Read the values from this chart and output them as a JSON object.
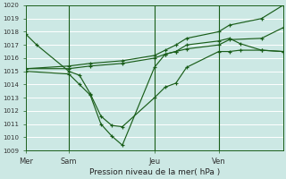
{
  "bg_color": "#cce8e4",
  "grid_color": "#b0d8d0",
  "line_color": "#1a5e1a",
  "ylabel": "Pression niveau de la mer( hPa )",
  "ylim": [
    1009,
    1020
  ],
  "yticks": [
    1009,
    1010,
    1011,
    1012,
    1013,
    1014,
    1015,
    1016,
    1017,
    1018,
    1019,
    1020
  ],
  "xlim": [
    0,
    48
  ],
  "xtick_positions": [
    0,
    8,
    24,
    36
  ],
  "xtick_labels": [
    "Mer",
    "Sam",
    "Jeu",
    "Ven"
  ],
  "vline_positions": [
    8,
    24,
    36
  ],
  "series": [
    {
      "x": [
        0,
        2,
        8,
        10,
        12,
        14,
        16,
        18,
        24,
        26,
        28,
        30,
        36,
        38,
        40,
        44,
        48
      ],
      "y": [
        1017.8,
        1017.0,
        1015.0,
        1014.7,
        1013.3,
        1011.6,
        1010.9,
        1010.8,
        1013.0,
        1013.8,
        1014.1,
        1015.3,
        1016.5,
        1016.5,
        1016.6,
        1016.6,
        1016.5
      ]
    },
    {
      "x": [
        0,
        8,
        10,
        12,
        14,
        16,
        18,
        24,
        26,
        28,
        30,
        36,
        38,
        40,
        44,
        48
      ],
      "y": [
        1015.0,
        1014.8,
        1014.0,
        1013.2,
        1011.0,
        1010.1,
        1009.4,
        1015.3,
        1016.3,
        1016.5,
        1017.0,
        1017.3,
        1017.5,
        1017.1,
        1016.6,
        1016.5
      ]
    },
    {
      "x": [
        0,
        8,
        12,
        18,
        24,
        26,
        28,
        30,
        36,
        38,
        44,
        48
      ],
      "y": [
        1015.2,
        1015.2,
        1015.4,
        1015.6,
        1016.0,
        1016.3,
        1016.5,
        1016.7,
        1017.0,
        1017.4,
        1017.5,
        1018.3
      ]
    },
    {
      "x": [
        0,
        8,
        12,
        18,
        24,
        26,
        28,
        30,
        36,
        38,
        44,
        48
      ],
      "y": [
        1015.2,
        1015.4,
        1015.6,
        1015.8,
        1016.2,
        1016.6,
        1017.0,
        1017.5,
        1018.0,
        1018.5,
        1019.0,
        1020.0
      ]
    }
  ]
}
